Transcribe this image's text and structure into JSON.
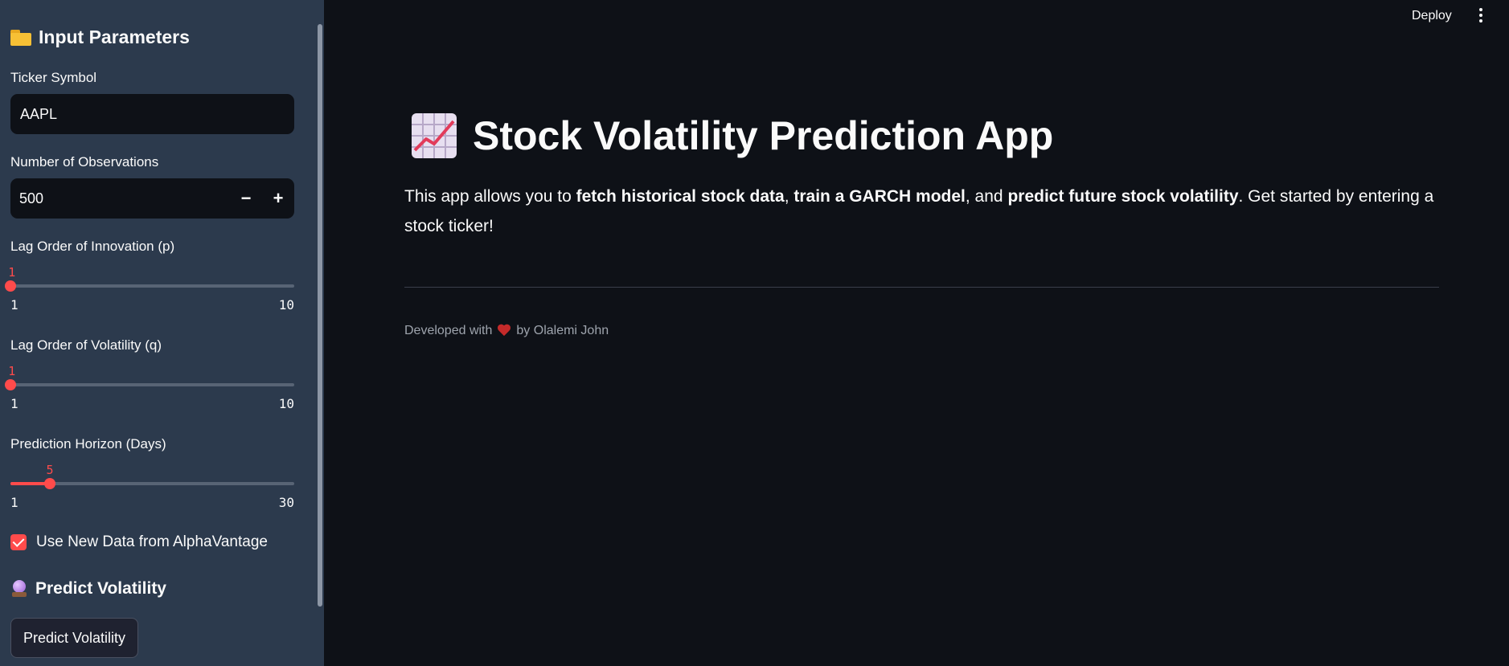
{
  "header": {
    "deploy_label": "Deploy"
  },
  "sidebar": {
    "title": "Input Parameters",
    "ticker": {
      "label": "Ticker Symbol",
      "value": "AAPL"
    },
    "observations": {
      "label": "Number of Observations",
      "value": "500",
      "minus": "−",
      "plus": "+"
    },
    "lag_p": {
      "label": "Lag Order of Innovation (p)",
      "value": "1",
      "min": "1",
      "max": "10",
      "fraction": 0.0
    },
    "lag_q": {
      "label": "Lag Order of Volatility (q)",
      "value": "1",
      "min": "1",
      "max": "10",
      "fraction": 0.0
    },
    "horizon": {
      "label": "Prediction Horizon (Days)",
      "value": "5",
      "min": "1",
      "max": "30",
      "fraction": 0.138
    },
    "use_new_data": {
      "label": "Use New Data from AlphaVantage",
      "checked": true
    },
    "predict_section_title": "Predict Volatility",
    "predict_button_label": "Predict Volatility"
  },
  "main": {
    "title": "Stock Volatility Prediction App",
    "intro": {
      "t1": "This app allows you to ",
      "b1": "fetch historical stock data",
      "t2": ", ",
      "b2": "train a GARCH model",
      "t3": ", and ",
      "b3": "predict future stock volatility",
      "t4": ". Get started by entering a stock ticker!"
    },
    "footer": {
      "prefix": "Developed with",
      "suffix": "by Olalemi John"
    }
  },
  "colors": {
    "accent": "#ff4b4b",
    "sidebar_bg": "#2c3a4d",
    "main_bg": "#0e1117"
  }
}
